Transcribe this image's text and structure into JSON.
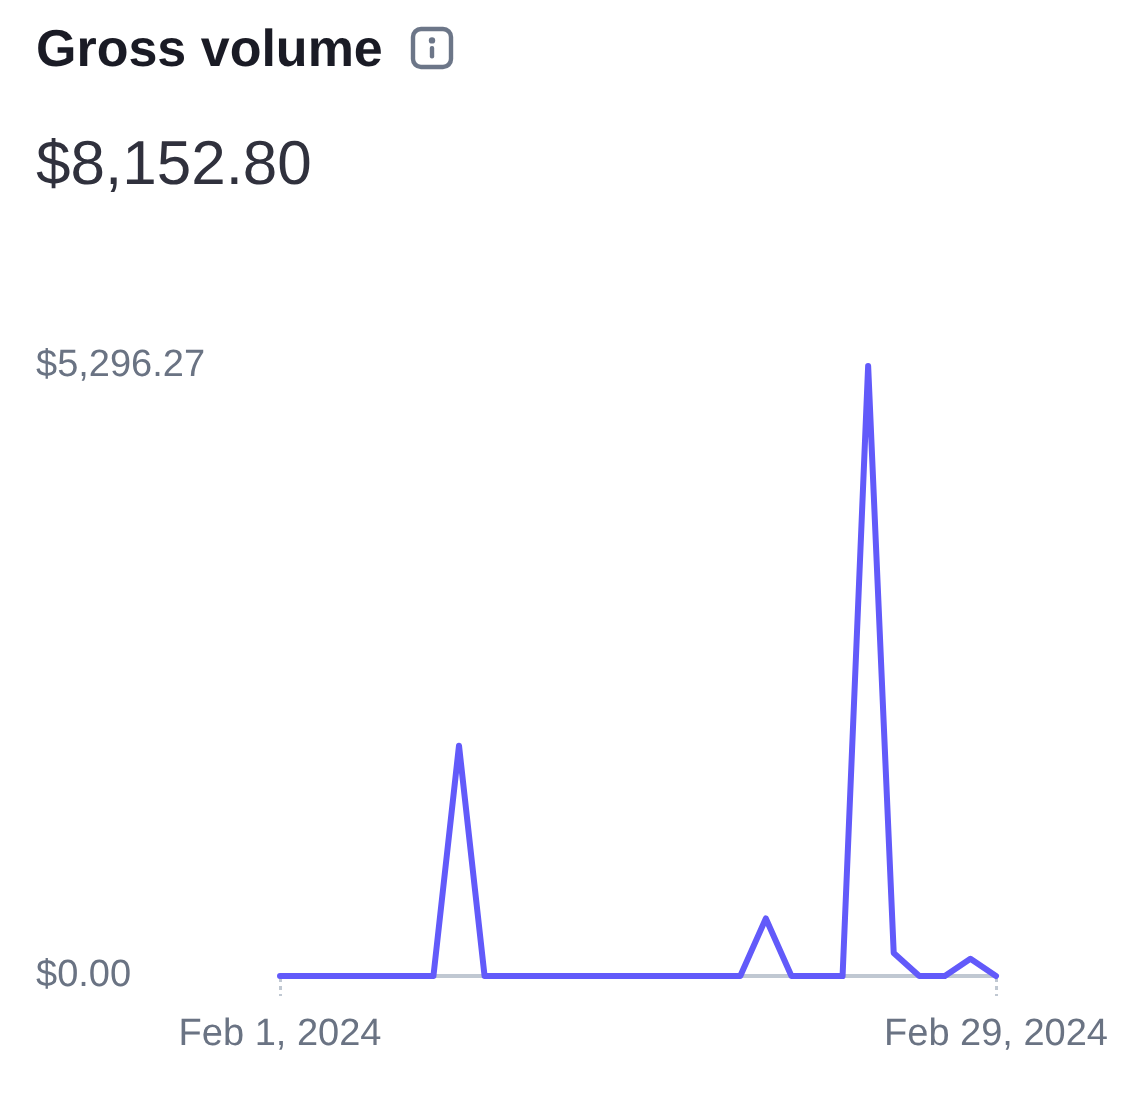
{
  "chart_data": {
    "type": "line",
    "title": "Gross volume",
    "subtitle": "$8,152.80",
    "x": [
      "2024-02-01",
      "2024-02-02",
      "2024-02-03",
      "2024-02-04",
      "2024-02-05",
      "2024-02-06",
      "2024-02-07",
      "2024-02-08",
      "2024-02-09",
      "2024-02-10",
      "2024-02-11",
      "2024-02-12",
      "2024-02-13",
      "2024-02-14",
      "2024-02-15",
      "2024-02-16",
      "2024-02-17",
      "2024-02-18",
      "2024-02-19",
      "2024-02-20",
      "2024-02-21",
      "2024-02-22",
      "2024-02-23",
      "2024-02-24",
      "2024-02-25",
      "2024-02-26",
      "2024-02-27",
      "2024-02-28",
      "2024-02-29"
    ],
    "values": [
      0,
      0,
      0,
      0,
      0,
      0,
      0,
      2000,
      0,
      0,
      0,
      0,
      0,
      0,
      0,
      0,
      0,
      0,
      0,
      500,
      0,
      0,
      0,
      5296.27,
      200,
      0,
      0,
      150,
      0
    ],
    "color": "#625afa",
    "xlim": [
      "2024-02-01",
      "2024-02-29"
    ],
    "xticks": [
      {
        "value": "2024-02-01",
        "label": "Feb 1, 2024"
      },
      {
        "value": "2024-02-29",
        "label": "Feb 29, 2024"
      }
    ],
    "ylim": [
      0,
      5296.27
    ],
    "yticks": [
      {
        "value": 0,
        "label": "$0.00"
      },
      {
        "value": 5296.27,
        "label": "$5,296.27"
      }
    ],
    "marker": "none"
  }
}
